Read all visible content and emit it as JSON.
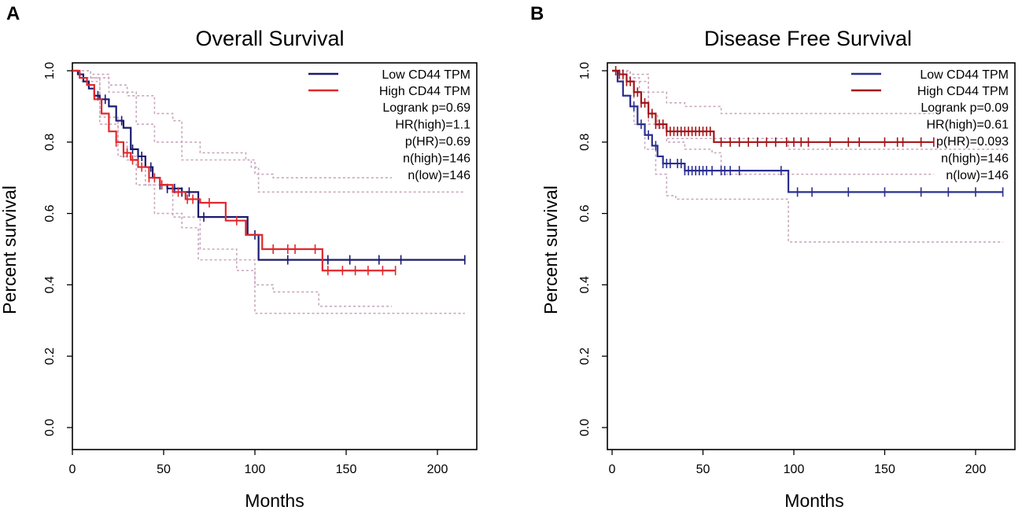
{
  "chart_data": [
    {
      "type": "line",
      "panel_letter": "A",
      "title": "Overall Survival",
      "xlabel": "Months",
      "ylabel": "Percent survival",
      "xlim": [
        0,
        220
      ],
      "ylim": [
        0,
        1.0
      ],
      "x_ticks": [
        "0",
        "50",
        "100",
        "150",
        "200"
      ],
      "y_ticks": [
        "0.0",
        "0.2",
        "0.4",
        "0.6",
        "0.8",
        "1.0"
      ],
      "legend": {
        "position": "top-right",
        "entries": [
          {
            "label": "Low CD44 TPM",
            "color": "#1a1a6e"
          },
          {
            "label": "High CD44 TPM",
            "color": "#e0282c"
          }
        ],
        "stats": [
          "Logrank p=0.69",
          "HR(high)=1.1",
          "p(HR)=0.69",
          "n(high)=146",
          "n(low)=146"
        ]
      },
      "series": [
        {
          "name": "Low CD44 TPM",
          "color": "#1a1a6e",
          "points": [
            [
              0,
              1.0
            ],
            [
              3,
              0.99
            ],
            [
              6,
              0.97
            ],
            [
              9,
              0.95
            ],
            [
              12,
              0.93
            ],
            [
              15,
              0.92
            ],
            [
              20,
              0.9
            ],
            [
              24,
              0.86
            ],
            [
              28,
              0.84
            ],
            [
              32,
              0.78
            ],
            [
              36,
              0.76
            ],
            [
              40,
              0.73
            ],
            [
              44,
              0.7
            ],
            [
              48,
              0.68
            ],
            [
              52,
              0.67
            ],
            [
              60,
              0.66
            ],
            [
              69,
              0.59
            ],
            [
              78,
              0.59
            ],
            [
              85,
              0.59
            ],
            [
              96,
              0.54
            ],
            [
              102,
              0.47
            ],
            [
              150,
              0.47
            ],
            [
              215,
              0.47
            ]
          ],
          "censor_x": [
            14,
            18,
            27,
            33,
            36,
            38,
            43,
            48,
            52,
            56,
            60,
            64,
            72,
            100,
            118,
            140,
            152,
            168,
            180,
            215
          ]
        },
        {
          "name": "High CD44 TPM",
          "color": "#e0282c",
          "points": [
            [
              0,
              1.0
            ],
            [
              4,
              0.98
            ],
            [
              8,
              0.96
            ],
            [
              12,
              0.92
            ],
            [
              16,
              0.88
            ],
            [
              20,
              0.83
            ],
            [
              24,
              0.8
            ],
            [
              28,
              0.77
            ],
            [
              32,
              0.75
            ],
            [
              36,
              0.73
            ],
            [
              42,
              0.7
            ],
            [
              48,
              0.68
            ],
            [
              55,
              0.66
            ],
            [
              62,
              0.64
            ],
            [
              70,
              0.63
            ],
            [
              84,
              0.58
            ],
            [
              95,
              0.54
            ],
            [
              104,
              0.5
            ],
            [
              120,
              0.5
            ],
            [
              137,
              0.44
            ],
            [
              177,
              0.44
            ]
          ],
          "censor_x": [
            24,
            28,
            30,
            33,
            38,
            42,
            45,
            49,
            58,
            63,
            66,
            75,
            90,
            110,
            118,
            122,
            133,
            140,
            148,
            155,
            162,
            170,
            177
          ]
        }
      ],
      "ci_bands": [
        [
          [
            0,
            1.0
          ],
          [
            10,
            0.99
          ],
          [
            20,
            0.96
          ],
          [
            30,
            0.93
          ],
          [
            45,
            0.88
          ],
          [
            55,
            0.86
          ],
          [
            60,
            0.8
          ],
          [
            70,
            0.77
          ],
          [
            95,
            0.75
          ],
          [
            100,
            0.71
          ],
          [
            110,
            0.7
          ],
          [
            140,
            0.7
          ],
          [
            175,
            0.7
          ]
        ],
        [
          [
            5,
            0.98
          ],
          [
            15,
            0.87
          ],
          [
            25,
            0.8
          ],
          [
            30,
            0.75
          ],
          [
            40,
            0.68
          ],
          [
            55,
            0.59
          ],
          [
            70,
            0.5
          ],
          [
            90,
            0.47
          ],
          [
            100,
            0.4
          ],
          [
            110,
            0.38
          ],
          [
            135,
            0.34
          ],
          [
            150,
            0.34
          ],
          [
            175,
            0.34
          ]
        ],
        [
          [
            0,
            1.0
          ],
          [
            10,
            0.98
          ],
          [
            20,
            0.94
          ],
          [
            35,
            0.85
          ],
          [
            45,
            0.8
          ],
          [
            60,
            0.75
          ],
          [
            70,
            0.75
          ],
          [
            98,
            0.73
          ],
          [
            102,
            0.66
          ],
          [
            150,
            0.66
          ],
          [
            215,
            0.66
          ]
        ],
        [
          [
            5,
            0.97
          ],
          [
            15,
            0.85
          ],
          [
            25,
            0.76
          ],
          [
            35,
            0.68
          ],
          [
            45,
            0.6
          ],
          [
            60,
            0.56
          ],
          [
            69,
            0.47
          ],
          [
            90,
            0.44
          ],
          [
            100,
            0.32
          ],
          [
            140,
            0.32
          ],
          [
            215,
            0.32
          ]
        ]
      ]
    },
    {
      "type": "line",
      "panel_letter": "B",
      "title": "Disease Free Survival",
      "xlabel": "Months",
      "ylabel": "Percent survival",
      "xlim": [
        0,
        220
      ],
      "ylim": [
        0,
        1.0
      ],
      "x_ticks": [
        "0",
        "50",
        "100",
        "150",
        "200"
      ],
      "y_ticks": [
        "0.0",
        "0.2",
        "0.4",
        "0.6",
        "0.8",
        "1.0"
      ],
      "legend": {
        "position": "top-right",
        "entries": [
          {
            "label": "Low CD44 TPM",
            "color": "#2b2f8f"
          },
          {
            "label": "High CD44 TPM",
            "color": "#a11418"
          }
        ],
        "stats": [
          "Logrank p=0.09",
          "HR(high)=0.61",
          "p(HR)=0.093",
          "n(high)=146",
          "n(low)=146"
        ]
      },
      "series": [
        {
          "name": "Low CD44 TPM",
          "color": "#2b2f8f",
          "points": [
            [
              0,
              1.0
            ],
            [
              3,
              0.97
            ],
            [
              6,
              0.93
            ],
            [
              10,
              0.9
            ],
            [
              14,
              0.85
            ],
            [
              18,
              0.82
            ],
            [
              22,
              0.79
            ],
            [
              25,
              0.76
            ],
            [
              28,
              0.74
            ],
            [
              35,
              0.74
            ],
            [
              40,
              0.72
            ],
            [
              60,
              0.72
            ],
            [
              97,
              0.72
            ],
            [
              97,
              0.66
            ],
            [
              150,
              0.66
            ],
            [
              215,
              0.66
            ]
          ],
          "censor_x": [
            12,
            16,
            20,
            24,
            28,
            30,
            32,
            36,
            38,
            40,
            42,
            44,
            46,
            48,
            50,
            52,
            55,
            60,
            62,
            65,
            70,
            93,
            102,
            110,
            130,
            150,
            170,
            185,
            200,
            215
          ]
        },
        {
          "name": "High CD44 TPM",
          "color": "#a11418",
          "points": [
            [
              0,
              1.0
            ],
            [
              4,
              0.99
            ],
            [
              8,
              0.97
            ],
            [
              12,
              0.94
            ],
            [
              16,
              0.91
            ],
            [
              20,
              0.88
            ],
            [
              24,
              0.85
            ],
            [
              30,
              0.83
            ],
            [
              40,
              0.83
            ],
            [
              50,
              0.83
            ],
            [
              56,
              0.8
            ],
            [
              120,
              0.8
            ],
            [
              177,
              0.8
            ]
          ],
          "censor_x": [
            2,
            4,
            6,
            8,
            10,
            12,
            14,
            16,
            18,
            20,
            22,
            24,
            26,
            28,
            30,
            32,
            34,
            36,
            38,
            40,
            42,
            44,
            46,
            48,
            50,
            52,
            54,
            60,
            65,
            70,
            75,
            80,
            85,
            90,
            96,
            100,
            104,
            108,
            120,
            130,
            136,
            150,
            157,
            160,
            170,
            177
          ]
        }
      ],
      "ci_bands": [
        [
          [
            0,
            1.0
          ],
          [
            10,
            0.99
          ],
          [
            20,
            0.94
          ],
          [
            30,
            0.91
          ],
          [
            40,
            0.9
          ],
          [
            55,
            0.9
          ],
          [
            60,
            0.88
          ],
          [
            120,
            0.88
          ],
          [
            177,
            0.88
          ]
        ],
        [
          [
            0,
            1.0
          ],
          [
            10,
            0.97
          ],
          [
            20,
            0.85
          ],
          [
            30,
            0.8
          ],
          [
            40,
            0.78
          ],
          [
            55,
            0.77
          ],
          [
            60,
            0.71
          ],
          [
            120,
            0.71
          ],
          [
            177,
            0.71
          ]
        ],
        [
          [
            0,
            1.0
          ],
          [
            8,
            0.98
          ],
          [
            15,
            0.94
          ],
          [
            20,
            0.88
          ],
          [
            25,
            0.84
          ],
          [
            30,
            0.81
          ],
          [
            60,
            0.81
          ],
          [
            97,
            0.81
          ],
          [
            97,
            0.78
          ],
          [
            215,
            0.78
          ]
        ],
        [
          [
            0,
            1.0
          ],
          [
            6,
            0.93
          ],
          [
            12,
            0.85
          ],
          [
            18,
            0.78
          ],
          [
            24,
            0.71
          ],
          [
            30,
            0.65
          ],
          [
            35,
            0.64
          ],
          [
            97,
            0.64
          ],
          [
            97,
            0.52
          ],
          [
            215,
            0.52
          ]
        ]
      ]
    }
  ]
}
